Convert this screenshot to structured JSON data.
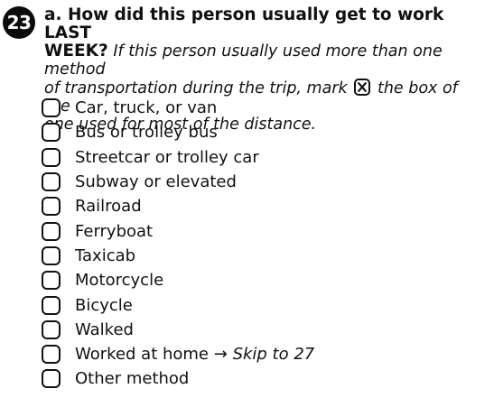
{
  "question": {
    "number": "23",
    "title_line1": "a. How did this person usually get to work LAST",
    "title_line2": "WEEK?",
    "instruction_part1": " If this person usually used more than one method",
    "instruction_line3": "of transportation during the trip, mark",
    "instruction_part2": " the box of the",
    "instruction_line4": "one used for most of the distance."
  },
  "options": [
    {
      "label": "Car, truck, or van"
    },
    {
      "label": "Bus or trolley bus"
    },
    {
      "label": "Streetcar or trolley car"
    },
    {
      "label": "Subway or elevated"
    },
    {
      "label": "Railroad"
    },
    {
      "label": "Ferryboat"
    },
    {
      "label": "Taxicab"
    },
    {
      "label": "Motorcycle"
    },
    {
      "label": "Bicycle"
    },
    {
      "label": "Walked"
    },
    {
      "label": "Worked at home",
      "arrow": "→",
      "skip": "Skip to 27"
    },
    {
      "label": "Other method"
    }
  ]
}
